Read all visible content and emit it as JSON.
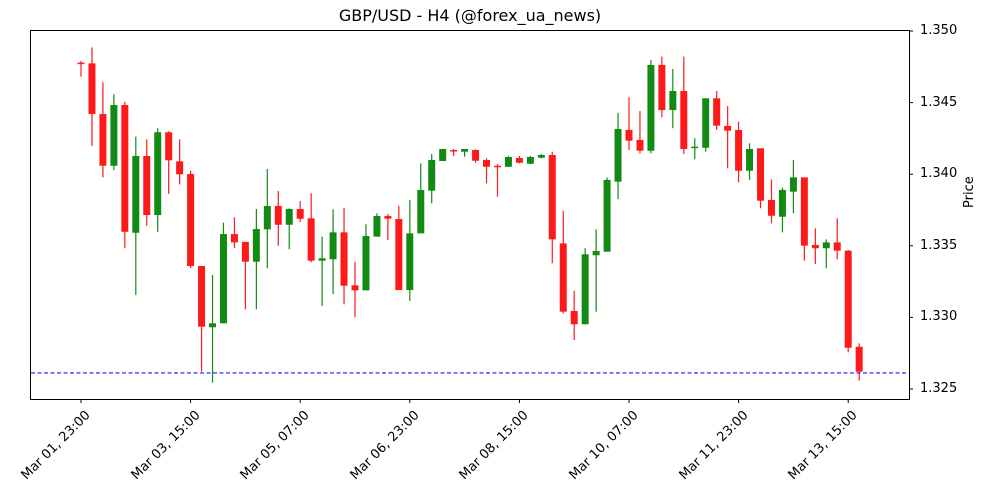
{
  "chart_data": {
    "type": "candlestick",
    "title": "GBP/USD - H4 (@forex_ua_news)",
    "xlabel": "",
    "ylabel": "Price",
    "ylim": [
      1.3243,
      1.35
    ],
    "y_ticks": [
      "1.325",
      "1.330",
      "1.335",
      "1.340",
      "1.345",
      "1.350"
    ],
    "y_tick_values": [
      1.325,
      1.33,
      1.335,
      1.34,
      1.345,
      1.35
    ],
    "x_ticks": [
      {
        "index": 0,
        "label": "Mar 01, 23:00"
      },
      {
        "index": 10,
        "label": "Mar 03, 15:00"
      },
      {
        "index": 20,
        "label": "Mar 05, 07:00"
      },
      {
        "index": 30,
        "label": "Mar 06, 23:00"
      },
      {
        "index": 40,
        "label": "Mar 08, 15:00"
      },
      {
        "index": 50,
        "label": "Mar 10, 07:00"
      },
      {
        "index": 60,
        "label": "Mar 11, 23:00"
      },
      {
        "index": 70,
        "label": "Mar 13, 15:00"
      }
    ],
    "y_axis_side": "right",
    "grid": false,
    "legend": null,
    "colors": {
      "up": "#138a13",
      "down": "#ff1a1a",
      "reference_line": "#1a1aff"
    },
    "reference_line": {
      "price": 1.32612,
      "style": "dashed",
      "color": "#1a1aff"
    },
    "series": [
      {
        "name": "GBP/USD H4",
        "ohlc": [
          [
            1.34779,
            1.34791,
            1.34681,
            1.34775
          ],
          [
            1.34774,
            1.34886,
            1.34197,
            1.3442
          ],
          [
            1.3442,
            1.34642,
            1.33978,
            1.34059
          ],
          [
            1.34059,
            1.34558,
            1.34029,
            1.34483
          ],
          [
            1.34483,
            1.34506,
            1.33483,
            1.33598
          ],
          [
            1.33591,
            1.34262,
            1.33156,
            1.34127
          ],
          [
            1.34127,
            1.34244,
            1.3364,
            1.33715
          ],
          [
            1.33715,
            1.34321,
            1.33598,
            1.34293
          ],
          [
            1.34293,
            1.343,
            1.33862,
            1.34097
          ],
          [
            1.3409,
            1.34244,
            1.33929,
            1.33999
          ],
          [
            1.34001,
            1.34024,
            1.33345,
            1.33359
          ],
          [
            1.33359,
            1.33359,
            1.32621,
            1.32935
          ],
          [
            1.32931,
            1.33296,
            1.32544,
            1.32959
          ],
          [
            1.32959,
            1.33661,
            1.32959,
            1.33582
          ],
          [
            1.33582,
            1.33699,
            1.33483,
            1.33524
          ],
          [
            1.33527,
            1.33527,
            1.33057,
            1.33389
          ],
          [
            1.33389,
            1.33757,
            1.33057,
            1.33617
          ],
          [
            1.33615,
            1.34036,
            1.33343,
            1.33778
          ],
          [
            1.33778,
            1.33883,
            1.33501,
            1.33647
          ],
          [
            1.33647,
            1.33762,
            1.33476,
            1.33757
          ],
          [
            1.33757,
            1.33813,
            1.33666,
            1.33689
          ],
          [
            1.33692,
            1.33867,
            1.33385,
            1.33396
          ],
          [
            1.33396,
            1.33564,
            1.3308,
            1.33413
          ],
          [
            1.33406,
            1.33755,
            1.33163,
            1.33594
          ],
          [
            1.33594,
            1.33766,
            1.33091,
            1.33221
          ],
          [
            1.33224,
            1.33389,
            1.33001,
            1.33189
          ],
          [
            1.33189,
            1.3365,
            1.33189,
            1.33568
          ],
          [
            1.33564,
            1.33727,
            1.33564,
            1.33708
          ],
          [
            1.33708,
            1.33722,
            1.33541,
            1.33689
          ],
          [
            1.33687,
            1.3378,
            1.33191,
            1.33191
          ],
          [
            1.33191,
            1.3382,
            1.33115,
            1.33587
          ],
          [
            1.33587,
            1.34076,
            1.33587,
            1.3389
          ],
          [
            1.33885,
            1.34141,
            1.33797,
            1.34099
          ],
          [
            1.34092,
            1.34176,
            1.34092,
            1.34176
          ],
          [
            1.34169,
            1.34176,
            1.34127,
            1.34164
          ],
          [
            1.34157,
            1.34176,
            1.34122,
            1.34176
          ],
          [
            1.34169,
            1.34174,
            1.3408,
            1.34094
          ],
          [
            1.34099,
            1.34111,
            1.33936,
            1.34052
          ],
          [
            1.34059,
            1.34071,
            1.33843,
            1.34052
          ],
          [
            1.34052,
            1.34127,
            1.3405,
            1.3412
          ],
          [
            1.34113,
            1.34127,
            1.34076,
            1.3408
          ],
          [
            1.34073,
            1.34127,
            1.34071,
            1.3412
          ],
          [
            1.34115,
            1.34141,
            1.34111,
            1.34134
          ],
          [
            1.34134,
            1.34157,
            1.33378,
            1.33545
          ],
          [
            1.33517,
            1.33745,
            1.33029,
            1.3304
          ],
          [
            1.33045,
            1.33187,
            1.32842,
            1.32952
          ],
          [
            1.32952,
            1.33483,
            1.32952,
            1.33441
          ],
          [
            1.33434,
            1.33615,
            1.3304,
            1.33464
          ],
          [
            1.33459,
            1.33976,
            1.33459,
            1.3396
          ],
          [
            1.33948,
            1.34429,
            1.33825,
            1.34316
          ],
          [
            1.34309,
            1.34537,
            1.34169,
            1.34234
          ],
          [
            1.34239,
            1.34441,
            1.34146,
            1.34164
          ],
          [
            1.34164,
            1.34797,
            1.34146,
            1.34763
          ],
          [
            1.34763,
            1.34821,
            1.34397,
            1.34448
          ],
          [
            1.34448,
            1.34735,
            1.34321,
            1.34581
          ],
          [
            1.34581,
            1.34821,
            1.34141,
            1.34176
          ],
          [
            1.34185,
            1.34251,
            1.34104,
            1.34192
          ],
          [
            1.34185,
            1.3453,
            1.34157,
            1.3453
          ],
          [
            1.3453,
            1.34581,
            1.34309,
            1.34339
          ],
          [
            1.34337,
            1.34476,
            1.34041,
            1.34304
          ],
          [
            1.34309,
            1.34367,
            1.33943,
            1.34024
          ],
          [
            1.34024,
            1.34216,
            1.3396,
            1.34176
          ],
          [
            1.34181,
            1.34181,
            1.33762,
            1.33815
          ],
          [
            1.3382,
            1.33964,
            1.33657,
            1.3371
          ],
          [
            1.33703,
            1.33906,
            1.33594,
            1.3389
          ],
          [
            1.33878,
            1.34099,
            1.33727,
            1.33978
          ],
          [
            1.33978,
            1.33978,
            1.33396,
            1.33501
          ],
          [
            1.33506,
            1.33622,
            1.33373,
            1.33483
          ],
          [
            1.33483,
            1.33545,
            1.33343,
            1.33524
          ],
          [
            1.33524,
            1.33692,
            1.33406,
            1.33466
          ],
          [
            1.33466,
            1.33471,
            1.32756,
            1.32788
          ],
          [
            1.32795,
            1.32819,
            1.32558,
            1.32621
          ]
        ]
      }
    ]
  }
}
